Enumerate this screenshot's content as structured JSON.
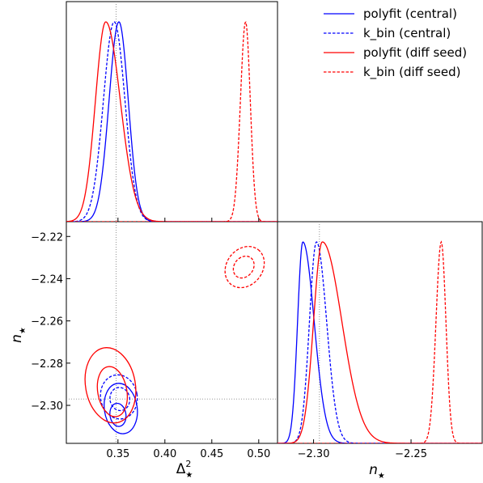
{
  "chart_data": {
    "type": "line",
    "layout": "triangle (corner) plot",
    "colors": {
      "central": "#0000ff",
      "diff_seed": "#ff0000",
      "reference": "#888888"
    },
    "reference_lines": {
      "delta2": 0.348,
      "n": -2.297
    },
    "legend": {
      "placement": "top-right",
      "entries": [
        {
          "label": "polyfit (central)",
          "color": "#0000ff",
          "style": "solid"
        },
        {
          "label": "k_bin (central)",
          "color": "#0000ff",
          "style": "dashed"
        },
        {
          "label": "polyfit (diff seed)",
          "color": "#ff0000",
          "style": "solid"
        },
        {
          "label": "k_bin (diff seed)",
          "color": "#ff0000",
          "style": "dashed"
        }
      ]
    },
    "panels": {
      "delta2_marginal": {
        "xlim": [
          0.295,
          0.52
        ],
        "series": [
          {
            "name": "polyfit (central)",
            "color": "#0000ff",
            "style": "solid",
            "peak": 0.351,
            "sigma_left": 0.0105,
            "sigma_right": 0.01
          },
          {
            "name": "k_bin (central)",
            "color": "#0000ff",
            "style": "dashed",
            "peak": 0.346,
            "sigma_left": 0.0115,
            "sigma_right": 0.0115
          },
          {
            "name": "polyfit (diff seed)",
            "color": "#ff0000",
            "style": "solid",
            "peak": 0.337,
            "sigma_left": 0.011,
            "sigma_right": 0.0155
          },
          {
            "name": "k_bin (diff seed)",
            "color": "#ff0000",
            "style": "dashed",
            "peak": 0.486,
            "sigma_left": 0.0055,
            "sigma_right": 0.005
          }
        ]
      },
      "joint": {
        "xlabel": "Δ",
        "xlabel_sup": "2",
        "xlabel_sub": "★",
        "ylabel": "n",
        "ylabel_sub": "★",
        "xlim": [
          0.295,
          0.52
        ],
        "ylim": [
          -2.318,
          -2.213
        ],
        "xticks": [
          0.35,
          0.4,
          0.45,
          0.5
        ],
        "xtick_labels": [
          "0.35",
          "0.40",
          "0.45",
          "0.50"
        ],
        "yticks": [
          -2.22,
          -2.24,
          -2.26,
          -2.28,
          -2.3
        ],
        "ytick_labels": [
          "−2.22",
          "−2.24",
          "−2.26",
          "−2.28",
          "−2.30"
        ],
        "contours": [
          {
            "series": "polyfit (central)",
            "color": "#0000ff",
            "style": "solid",
            "level": "inner",
            "cx": 0.35,
            "cy": -2.3045,
            "rx": 0.0085,
            "ry": 0.0055,
            "tilt": 8
          },
          {
            "series": "polyfit (central)",
            "color": "#0000ff",
            "style": "solid",
            "level": "outer",
            "cx": 0.353,
            "cy": -2.3015,
            "rx": 0.0175,
            "ry": 0.012,
            "tilt": 8
          },
          {
            "series": "k_bin (central)",
            "color": "#0000ff",
            "style": "dashed",
            "level": "inner",
            "cx": 0.352,
            "cy": -2.297,
            "rx": 0.0105,
            "ry": 0.0055,
            "tilt": 10
          },
          {
            "series": "k_bin (central)",
            "color": "#0000ff",
            "style": "dashed",
            "level": "outer",
            "cx": 0.351,
            "cy": -2.296,
            "rx": 0.0195,
            "ry": 0.0105,
            "tilt": 10
          },
          {
            "series": "polyfit (diff seed)",
            "color": "#ff0000",
            "style": "solid",
            "level": "inner",
            "cx": 0.344,
            "cy": -2.2935,
            "rx": 0.0155,
            "ry": 0.012,
            "tilt": 10
          },
          {
            "series": "polyfit (diff seed)",
            "color": "#ff0000",
            "style": "solid",
            "level": "outer",
            "cx": 0.342,
            "cy": -2.2905,
            "rx": 0.0265,
            "ry": 0.018,
            "tilt": 10
          },
          {
            "series": "k_bin (diff seed)",
            "color": "#ff0000",
            "style": "dashed",
            "level": "inner",
            "cx": 0.484,
            "cy": -2.2345,
            "rx": 0.0125,
            "ry": 0.0045,
            "tilt": 52
          },
          {
            "series": "k_bin (diff seed)",
            "color": "#ff0000",
            "style": "dashed",
            "level": "outer",
            "cx": 0.485,
            "cy": -2.2345,
            "rx": 0.0235,
            "ry": 0.0085,
            "tilt": 52
          }
        ]
      },
      "n_marginal": {
        "xlabel": "n",
        "xlabel_sub": "★",
        "xlim": [
          -2.3185,
          -2.2135
        ],
        "xticks": [
          -2.3,
          -2.25
        ],
        "xtick_labels": [
          "−2.30",
          "−2.25"
        ],
        "series": [
          {
            "name": "polyfit (central)",
            "color": "#0000ff",
            "style": "solid",
            "peak": -2.3055,
            "sigma_left": 0.0027,
            "sigma_right": 0.0058
          },
          {
            "name": "k_bin (central)",
            "color": "#0000ff",
            "style": "dashed",
            "peak": -2.2985,
            "sigma_left": 0.0036,
            "sigma_right": 0.0052
          },
          {
            "name": "polyfit (diff seed)",
            "color": "#ff0000",
            "style": "solid",
            "peak": -2.2955,
            "sigma_left": 0.0045,
            "sigma_right": 0.01
          },
          {
            "name": "k_bin (diff seed)",
            "color": "#ff0000",
            "style": "dashed",
            "peak": -2.2345,
            "sigma_left": 0.0027,
            "sigma_right": 0.0024
          }
        ]
      }
    }
  }
}
